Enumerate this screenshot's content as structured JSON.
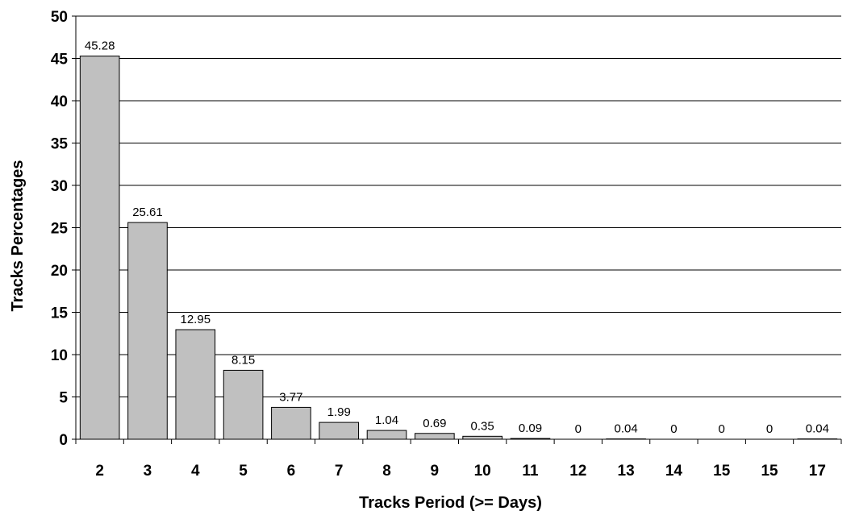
{
  "chart_data": {
    "type": "bar",
    "title": "",
    "xlabel": "Tracks Period (>= Days)",
    "ylabel": "Tracks Percentages",
    "categories": [
      "2",
      "3",
      "4",
      "5",
      "6",
      "7",
      "8",
      "9",
      "10",
      "11",
      "12",
      "13",
      "14",
      "15",
      "15",
      "17"
    ],
    "values": [
      45.28,
      25.61,
      12.95,
      8.15,
      3.77,
      1.99,
      1.04,
      0.69,
      0.35,
      0.09,
      0,
      0.04,
      0,
      0,
      0,
      0.04
    ],
    "data_labels": [
      "45.28",
      "25.61",
      "12.95",
      "8.15",
      "3.77",
      "1.99",
      "1.04",
      "0.69",
      "0.35",
      "0.09",
      "0",
      "0.04",
      "0",
      "0",
      "0",
      "0.04"
    ],
    "ylim": [
      0,
      50
    ],
    "yticks": [
      0,
      5,
      10,
      15,
      20,
      25,
      30,
      35,
      40,
      45,
      50
    ],
    "grid": "horizontal",
    "legend": "none",
    "bar_color": "#c0c0c0",
    "bar_border_color": "#000000"
  }
}
